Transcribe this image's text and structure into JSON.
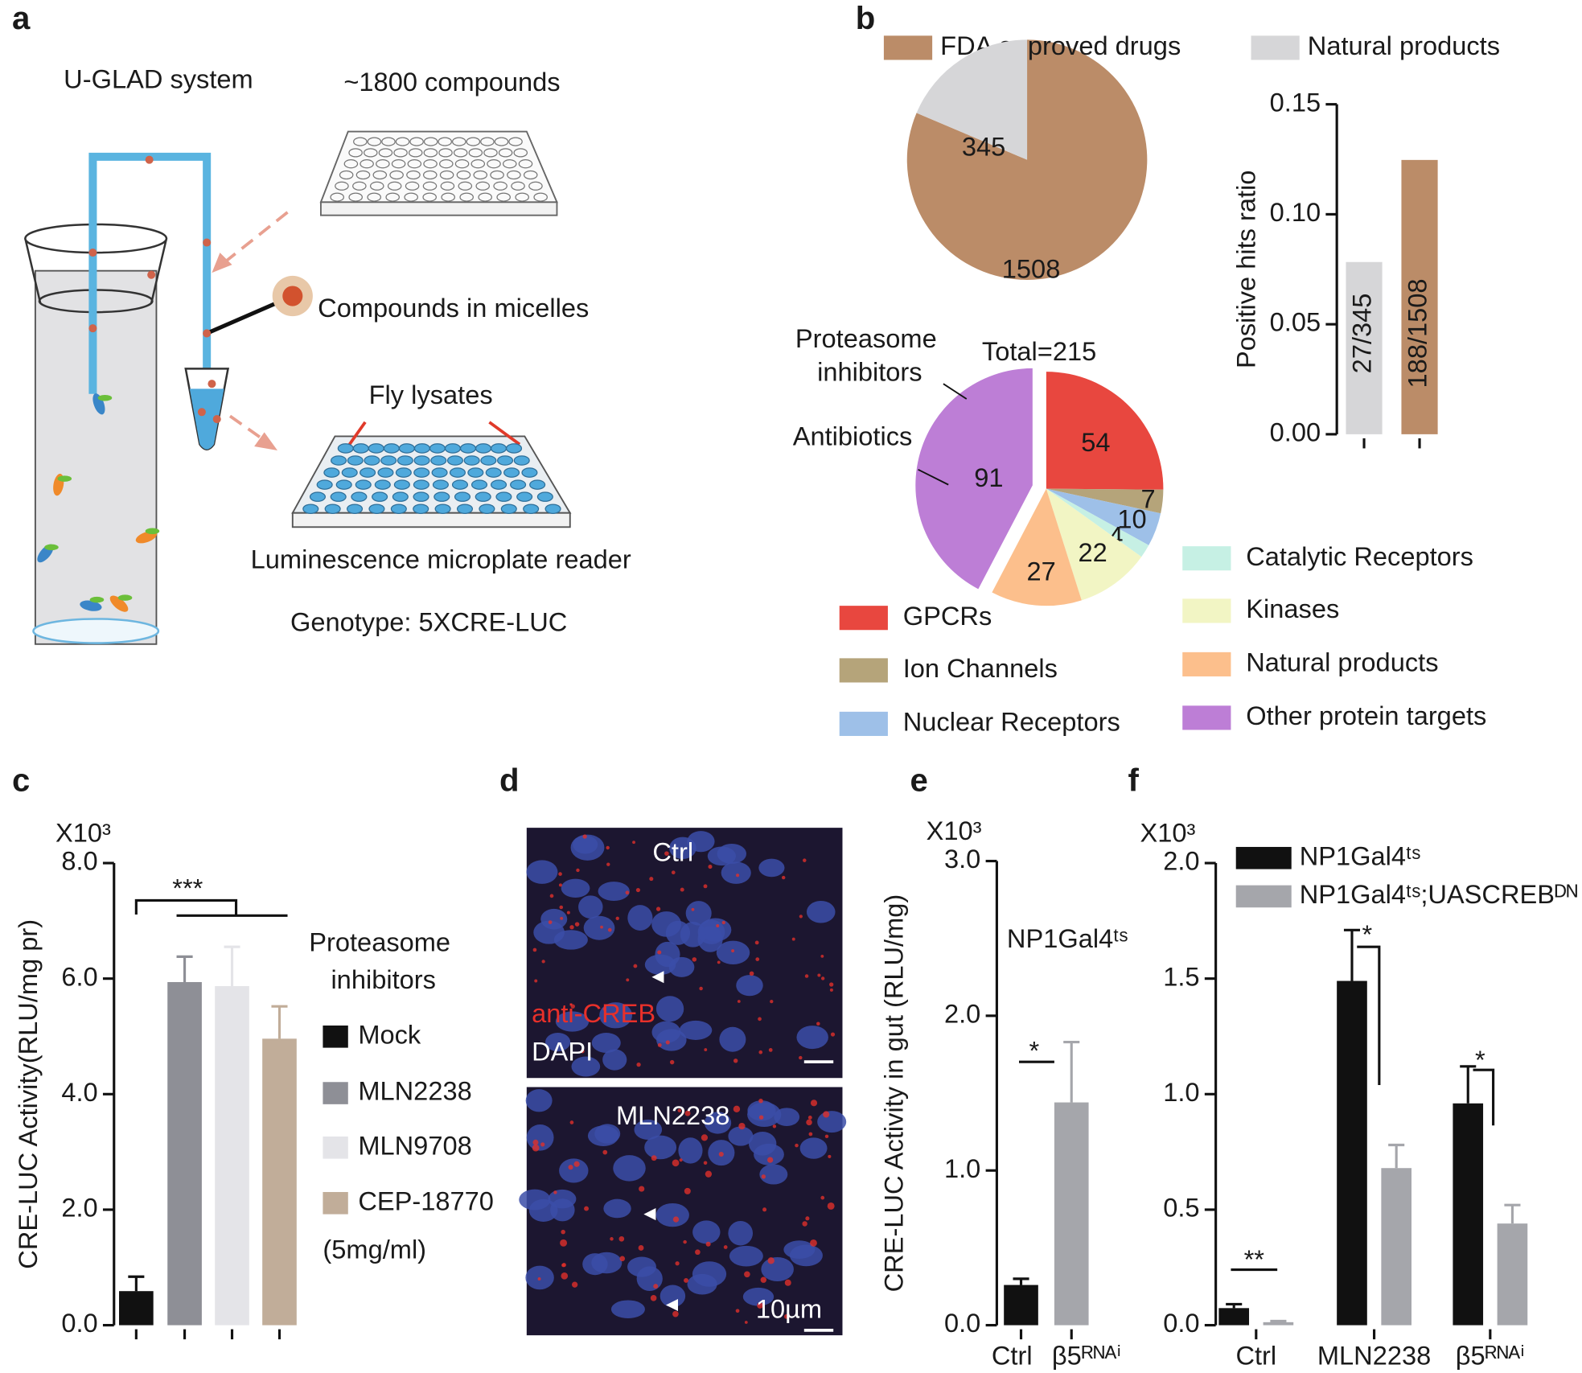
{
  "panel_a": {
    "label": "a",
    "system": "U-GLAD system",
    "compounds": "~1800 compounds",
    "micelles": "Compounds in micelles",
    "lysates": "Fly lysates",
    "reader": "Luminescence microplate reader",
    "genotype": "Genotype: 5XCRE-LUC"
  },
  "panel_d": {
    "label": "d",
    "top": "Ctrl",
    "bottom": "MLN2238",
    "stain_red": "anti-CREB",
    "stain_blue": "DAPI",
    "scale": "10µm"
  },
  "chart_data": [
    {
      "type": "pie",
      "panel": "b",
      "categories": [
        "FDA approved drugs",
        "Natural products"
      ],
      "values": [
        1508,
        345
      ],
      "colors": [
        "#bb8c68",
        "#d6d6d8"
      ]
    },
    {
      "type": "bar",
      "ylabel": "Positive hits ratio",
      "categories": [
        null,
        null
      ],
      "values": [
        0.0783,
        0.1247
      ],
      "value_labels": [
        "27/345",
        "188/1508"
      ],
      "colors": [
        "#d6d6d8",
        "#bb8c68"
      ],
      "ylim": [
        0,
        0.15
      ],
      "yticks": [
        {
          "value": 0,
          "label": "0.00"
        },
        {
          "value": 0.05,
          "label": "0.05"
        },
        {
          "value": 0.1,
          "label": "0.10"
        },
        {
          "value": 0.15,
          "label": "0.15"
        }
      ]
    },
    {
      "type": "pie",
      "title": "Total=215",
      "annotations": [
        "Proteasome inhibitors",
        "Antibiotics"
      ],
      "categories": [
        "GPCRs",
        "Ion Channels",
        "Nuclear Receptors",
        "Catalytic Receptors",
        "Kinases",
        "Natural products",
        "Other protein targets"
      ],
      "values": [
        54,
        7,
        10,
        4,
        22,
        27,
        91
      ],
      "colors": [
        "#e8473f",
        "#b5a47a",
        "#9ec0e8",
        "#c6f0e4",
        "#f2f5c4",
        "#fcbf8c",
        "#bd7ed6"
      ]
    },
    {
      "type": "bar",
      "panel": "c",
      "unit": "X10³",
      "ylabel": "CRE-LUC Activity(RLU/mg pr)",
      "legend_title": "Proteasome inhibitors",
      "note": "(5mg/ml)",
      "significance": "***",
      "categories_in_legend": true,
      "categories": [
        "Mock",
        "MLN2238",
        "MLN9708",
        "CEP-18770"
      ],
      "values": [
        0.59,
        5.94,
        5.87,
        4.96
      ],
      "errors": [
        0.25,
        0.44,
        0.68,
        0.56
      ],
      "colors": [
        "#111111",
        "#8e8f96",
        "#e4e4e8",
        "#c1ad99"
      ],
      "ylim": [
        0,
        8
      ],
      "yticks": [
        {
          "value": 0,
          "label": "0.0"
        },
        {
          "value": 2,
          "label": "2.0"
        },
        {
          "value": 4,
          "label": "4.0"
        },
        {
          "value": 6,
          "label": "6.0"
        },
        {
          "value": 8,
          "label": "8.0"
        }
      ]
    },
    {
      "type": "bar",
      "panel": "e",
      "unit": "X10³",
      "ylabel": "CRE-LUC Activity in gut (RLU/mg)",
      "annotation": "NP1Gal4ᵗˢ",
      "significance": "*",
      "categories": [
        "Ctrl",
        "β5ᴿᴺᴬⁱ"
      ],
      "values": [
        0.26,
        1.44
      ],
      "errors": [
        0.04,
        0.39
      ],
      "colors": [
        "#111111",
        "#a5a6ab"
      ],
      "ylim": [
        0,
        3
      ],
      "yticks": [
        {
          "value": 0,
          "label": "0.0"
        },
        {
          "value": 1,
          "label": "1.0"
        },
        {
          "value": 2,
          "label": "2.0"
        },
        {
          "value": 3,
          "label": "3.0"
        }
      ]
    },
    {
      "type": "bar",
      "panel": "f",
      "unit": "X10³",
      "significance": [
        "**",
        "*",
        "*"
      ],
      "categories": [
        "Ctrl",
        "MLN2238",
        "β5ᴿᴺᴬⁱ"
      ],
      "series": [
        {
          "name": "NP1Gal4ᵗˢ",
          "color": "#111111",
          "values": [
            0.074,
            1.49,
            0.96
          ],
          "errors": [
            0.017,
            0.22,
            0.16
          ]
        },
        {
          "name": "NP1Gal4ᵗˢ;UASCREBᴰᴺ",
          "color": "#a5a6ab",
          "values": [
            0.013,
            0.68,
            0.44
          ],
          "errors": [
            0.005,
            0.1,
            0.08
          ]
        }
      ],
      "ylim": [
        0,
        2
      ],
      "yticks": [
        {
          "value": 0,
          "label": "0.0"
        },
        {
          "value": 0.5,
          "label": "0.5"
        },
        {
          "value": 1,
          "label": "1.0"
        },
        {
          "value": 1.5,
          "label": "1.5"
        },
        {
          "value": 2,
          "label": "2.0"
        }
      ]
    }
  ]
}
